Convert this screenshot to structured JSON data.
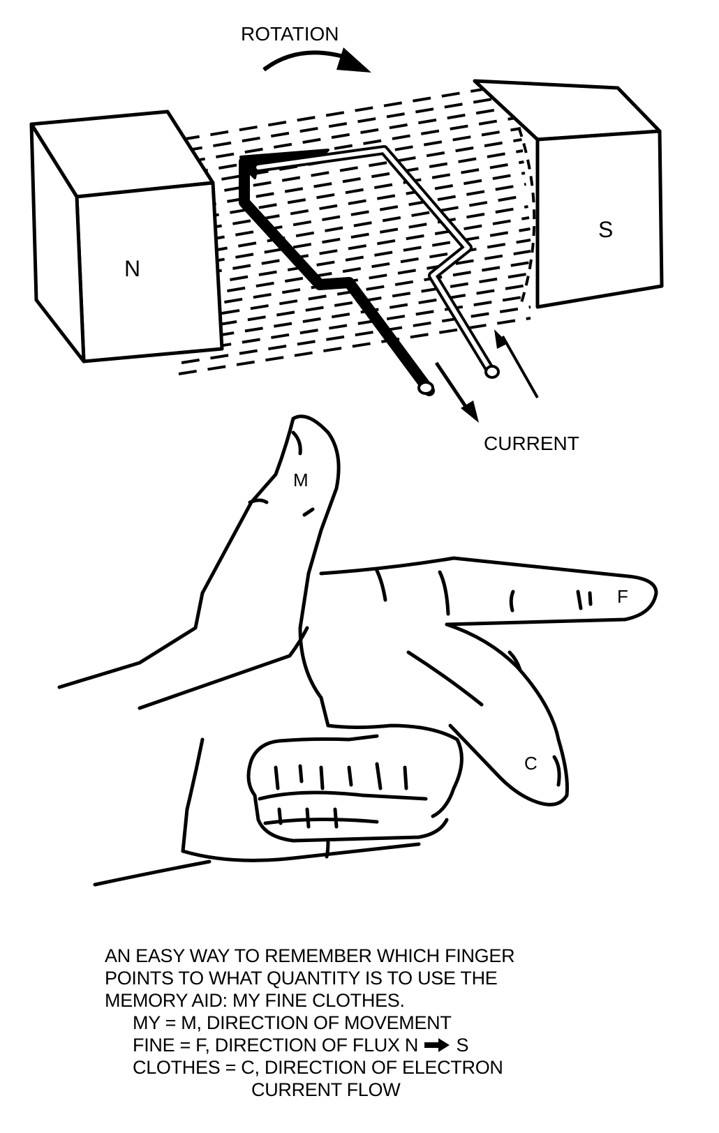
{
  "diagram": {
    "labels": {
      "rotation": "ROTATION",
      "current": "CURRENT",
      "north": "N",
      "south": "S",
      "movement_finger": "M",
      "flux_finger": "F",
      "current_finger": "C"
    },
    "caption": {
      "line1": "AN EASY WAY TO REMEMBER WHICH FINGER",
      "line2": "POINTS TO WHAT QUANTITY IS TO USE THE",
      "line3": "MEMORY AID: MY FINE CLOTHES.",
      "line4": "MY = M, DIRECTION OF MOVEMENT",
      "line5_before": "FINE = F, DIRECTION OF FLUX N",
      "line5_after": "S",
      "line6": "CLOTHES = C, DIRECTION OF ELECTRON",
      "line7": "CURRENT FLOW"
    }
  }
}
